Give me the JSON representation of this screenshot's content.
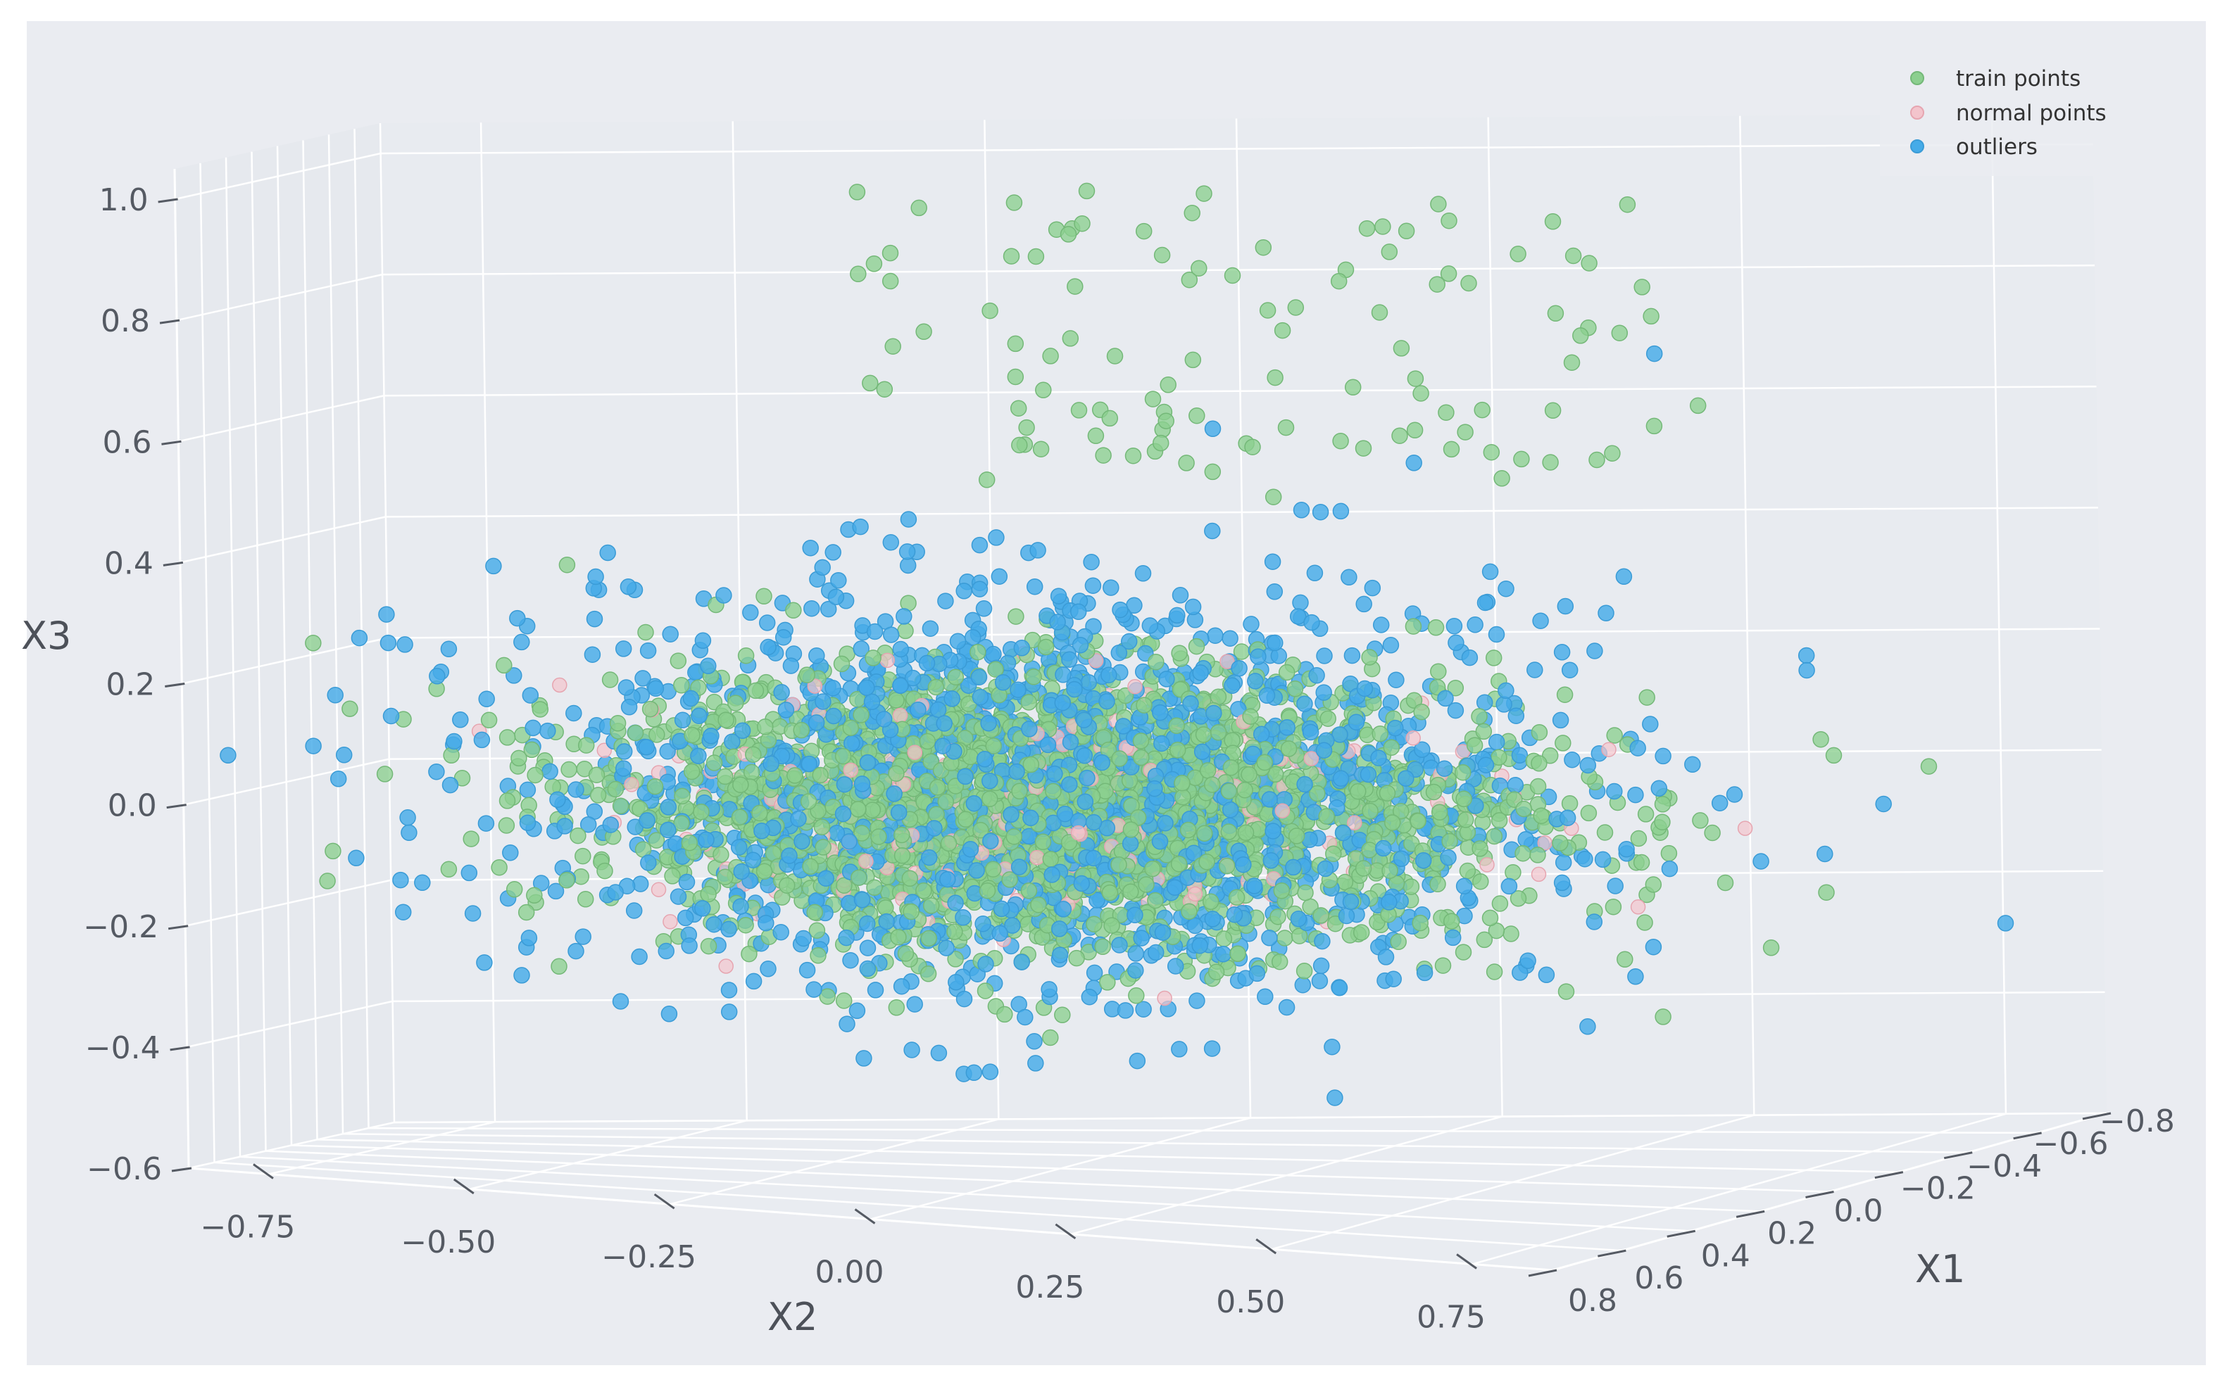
{
  "chart_data": {
    "type": "scatter",
    "projection": "3d",
    "xlabel": "X1",
    "ylabel": "X2",
    "zlabel": "X3",
    "x1_ticks": [
      "0.8",
      "0.6",
      "0.4",
      "0.2",
      "0.0",
      "−0.2",
      "−0.4",
      "−0.6",
      "−0.8"
    ],
    "x2_ticks": [
      "−0.75",
      "−0.50",
      "−0.25",
      "0.00",
      "0.25",
      "0.50",
      "0.75"
    ],
    "x3_ticks": [
      "1.0",
      "0.8",
      "0.6",
      "0.4",
      "0.2",
      "0.0",
      "−0.2",
      "−0.4",
      "−0.6"
    ],
    "xlim": [
      -0.8,
      0.8
    ],
    "ylim": [
      -0.85,
      0.85
    ],
    "zlim": [
      -0.6,
      1.05
    ],
    "grid": true,
    "legend_position": "top-right",
    "series": [
      {
        "name": "train points",
        "color": "#8ccf8f",
        "edge": "#74b878",
        "count_approx": 2500,
        "center": [
          0.0,
          0.0,
          0.0
        ],
        "spread": [
          0.2,
          0.25,
          0.11
        ],
        "distribution": "dense ellipsoidal cloud plus sparse upper plume reaching X3 ≈ 1.0"
      },
      {
        "name": "normal points",
        "color": "#f3c4cc",
        "edge": "#e6a5b0",
        "count_approx": 300,
        "center": [
          0.0,
          0.0,
          0.0
        ],
        "spread": [
          0.19,
          0.22,
          0.1
        ],
        "distribution": "mostly hidden inside the train cloud"
      },
      {
        "name": "outliers",
        "color": "#45abe8",
        "edge": "#3a9bd6",
        "count_approx": 1800,
        "center": [
          0.0,
          0.0,
          0.0
        ],
        "spread": [
          0.26,
          0.27,
          0.16
        ],
        "distribution": "wider shell surrounding the train cloud"
      }
    ]
  },
  "legend": {
    "items": [
      {
        "label": "train points",
        "color": "#8ccf8f"
      },
      {
        "label": "normal points",
        "color": "#f3c4cc"
      },
      {
        "label": "outliers",
        "color": "#45abe8"
      }
    ]
  },
  "colors": {
    "pane": "#eaecf1",
    "grid": "#ffffff",
    "tick_text": "#555a63"
  }
}
